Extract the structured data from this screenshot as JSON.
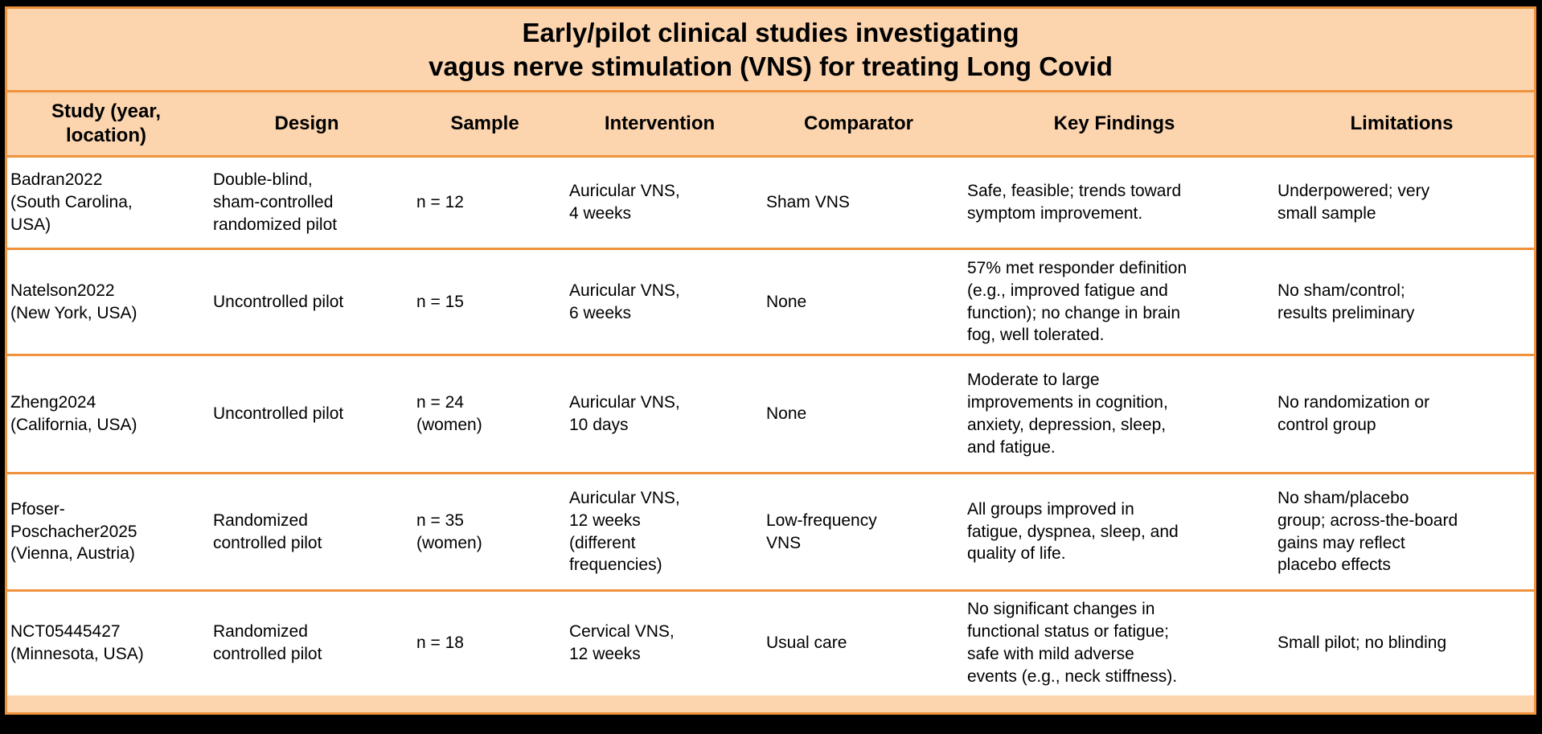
{
  "title": {
    "line1": "Early/pilot clinical studies investigating",
    "line2": "vagus nerve stimulation (VNS) for treating Long Covid"
  },
  "columns": [
    "Study (year,\nlocation)",
    "Design",
    "Sample",
    "Intervention",
    "Comparator",
    "Key Findings",
    "Limitations"
  ],
  "rows": [
    {
      "cells": [
        "Badran2022\n(South Carolina,\nUSA)",
        "Double-blind,\nsham-controlled\nrandomized pilot",
        "n = 12",
        "Auricular VNS,\n4 weeks",
        "Sham VNS",
        "Safe, feasible; trends toward\nsymptom improvement.",
        "Underpowered; very\nsmall sample"
      ]
    },
    {
      "cells": [
        "Natelson2022\n(New York, USA)",
        "Uncontrolled pilot",
        "n = 15",
        "Auricular VNS,\n6 weeks",
        "None",
        "57% met responder definition\n(e.g., improved fatigue and\nfunction); no change in brain\nfog, well tolerated.",
        "No sham/control;\nresults preliminary"
      ]
    },
    {
      "cells": [
        "Zheng2024\n(California, USA)",
        "Uncontrolled pilot",
        "n = 24\n(women)",
        "Auricular VNS,\n10 days",
        "None",
        "Moderate to large\nimprovements in cognition,\nanxiety, depression, sleep,\nand fatigue.",
        "No randomization or\ncontrol group"
      ]
    },
    {
      "cells": [
        "Pfoser-\nPoschacher2025\n(Vienna, Austria)",
        "Randomized\ncontrolled pilot",
        "n = 35\n(women)",
        "Auricular VNS,\n12 weeks\n(different\nfrequencies)",
        "Low-frequency\nVNS",
        "All groups improved in\nfatigue, dyspnea, sleep, and\nquality of life.",
        "No sham/placebo\ngroup; across-the-board\ngains may reflect\nplacebo effects"
      ]
    },
    {
      "cells": [
        "NCT05445427\n(Minnesota, USA)",
        "Randomized\ncontrolled pilot",
        "n = 18",
        "Cervical VNS,\n12 weeks",
        "Usual care",
        "No significant changes in\nfunctional status or fatigue;\nsafe with mild adverse\nevents (e.g., neck stiffness).",
        "Small pilot; no blinding"
      ]
    }
  ],
  "colors": {
    "panel_bg": "#FCD5AE",
    "border_orange": "#F0923C",
    "frame_black": "#000000",
    "row_bg": "#FFFFFF",
    "text": "#000000"
  }
}
